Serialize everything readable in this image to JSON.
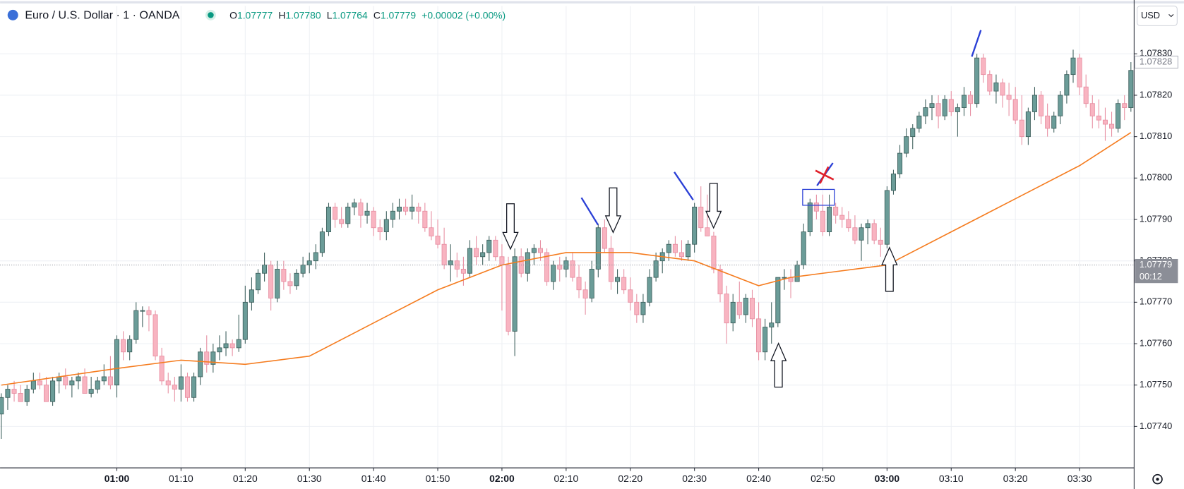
{
  "header": {
    "symbol": "Euro / U.S. Dollar · 1 · OANDA",
    "ohlc": [
      {
        "label": "O",
        "value": "1.07777"
      },
      {
        "label": "H",
        "value": "1.07780"
      },
      {
        "label": "L",
        "value": "1.07764"
      },
      {
        "label": "C",
        "value": "1.07779"
      }
    ],
    "change": "+0.00002 (+0.00%)",
    "currency": "USD",
    "countdown": "00:12"
  },
  "chart_data": {
    "type": "candlestick",
    "up_color": "#6b9c98",
    "down_color": "#f8b4c1",
    "grid": true,
    "x": [
      42,
      43,
      44,
      45,
      46,
      47,
      48,
      49,
      50,
      51,
      52,
      53,
      54,
      55,
      56,
      57,
      58,
      59,
      60,
      61,
      62,
      63,
      64,
      65,
      66,
      67,
      68,
      69,
      70,
      71,
      72,
      73,
      74,
      75,
      76,
      77,
      78,
      79,
      80,
      81,
      82,
      83,
      84,
      85,
      86,
      87,
      88,
      89,
      90,
      91,
      92,
      93,
      94,
      95,
      96,
      97,
      98,
      99,
      100,
      101,
      102,
      103,
      104,
      105,
      106,
      107,
      108,
      109,
      110,
      111,
      112,
      113,
      114,
      115,
      116,
      117,
      118,
      119,
      120,
      121,
      122,
      123,
      124,
      125,
      126,
      127,
      128,
      129,
      130,
      131,
      132,
      133,
      134,
      135,
      136,
      137,
      138,
      139,
      140,
      141,
      142,
      143,
      144,
      145,
      146,
      147,
      148,
      149,
      150,
      151,
      152,
      153,
      154,
      155,
      156,
      157,
      158,
      159,
      160,
      161,
      162,
      163,
      164,
      165,
      166,
      167,
      168,
      169,
      170,
      171,
      172,
      173,
      174,
      175,
      176,
      177,
      178,
      179,
      180,
      181,
      182,
      183,
      184,
      185,
      186,
      187,
      188,
      189,
      190,
      191,
      192,
      193,
      194,
      195,
      196,
      197,
      198,
      199,
      200,
      201,
      202,
      203,
      204,
      205,
      206,
      207,
      208,
      209,
      210,
      211,
      212,
      213,
      214,
      215,
      216,
      217,
      218
    ],
    "open": [
      1.07743,
      1.07747,
      1.07749,
      1.07748,
      1.07746,
      1.07749,
      1.07751,
      1.0775,
      1.07746,
      1.07751,
      1.07752,
      1.0775,
      1.07751,
      1.07752,
      1.07748,
      1.07749,
      1.07751,
      1.07752,
      1.0775,
      1.07761,
      1.07758,
      1.07761,
      1.07768,
      1.07768,
      1.07767,
      1.07757,
      1.07751,
      1.0775,
      1.07749,
      1.07752,
      1.07747,
      1.07752,
      1.07758,
      1.07755,
      1.07758,
      1.07759,
      1.0776,
      1.07759,
      1.07761,
      1.0777,
      1.07773,
      1.07777,
      1.07779,
      1.07771,
      1.07778,
      1.07775,
      1.07774,
      1.07777,
      1.07779,
      1.0778,
      1.07782,
      1.07787,
      1.07793,
      1.0779,
      1.07789,
      1.07793,
      1.07794,
      1.07791,
      1.07792,
      1.07788,
      1.07787,
      1.0779,
      1.07792,
      1.07793,
      1.07792,
      1.07793,
      1.07792,
      1.07788,
      1.07786,
      1.07784,
      1.07779,
      1.0778,
      1.07778,
      1.07777,
      1.07783,
      1.07781,
      1.07782,
      1.07785,
      1.07781,
      1.07779,
      1.07763,
      1.07781,
      1.07777,
      1.07782,
      1.07783,
      1.07782,
      1.07775,
      1.07779,
      1.07778,
      1.0778,
      1.07776,
      1.07773,
      1.07771,
      1.07778,
      1.07788,
      1.07783,
      1.07775,
      1.07776,
      1.07773,
      1.0777,
      1.07767,
      1.0777,
      1.07776,
      1.0778,
      1.07782,
      1.07784,
      1.07782,
      1.07781,
      1.07784,
      1.07793,
      1.07788,
      1.07786,
      1.07778,
      1.07772,
      1.07765,
      1.0777,
      1.07767,
      1.07771,
      1.07766,
      1.07758,
      1.07764,
      1.07765,
      1.07776,
      1.07776,
      1.07775,
      1.07779,
      1.07787,
      1.07794,
      1.07792,
      1.07787,
      1.07793,
      1.07791,
      1.0779,
      1.07788,
      1.07785,
      1.07788,
      1.07789,
      1.07785,
      1.07784,
      1.07797,
      1.07801,
      1.07806,
      1.0781,
      1.07812,
      1.07815,
      1.07817,
      1.07818,
      1.07815,
      1.07819,
      1.07816,
      1.07817,
      1.0782,
      1.07818,
      1.07829,
      1.07825,
      1.07821,
      1.07823,
      1.0782,
      1.07819,
      1.07814,
      1.0781,
      1.07816,
      1.0782,
      1.07815,
      1.07812,
      1.07815,
      1.0782,
      1.07825,
      1.07829,
      1.07822,
      1.07818,
      1.07815,
      1.07814,
      1.07813,
      1.07812,
      1.07818,
      1.07817
    ],
    "high": [
      1.07748,
      1.0775,
      1.07751,
      1.0775,
      1.0775,
      1.07753,
      1.07753,
      1.07752,
      1.07752,
      1.07753,
      1.07754,
      1.07752,
      1.07753,
      1.07754,
      1.07752,
      1.07752,
      1.07755,
      1.07757,
      1.07762,
      1.07763,
      1.07762,
      1.0777,
      1.07769,
      1.07769,
      1.07768,
      1.07759,
      1.07753,
      1.07752,
      1.07755,
      1.07753,
      1.07753,
      1.07759,
      1.07762,
      1.0776,
      1.07762,
      1.07763,
      1.07761,
      1.07767,
      1.07774,
      1.07776,
      1.07778,
      1.07782,
      1.0778,
      1.0778,
      1.0778,
      1.07777,
      1.07778,
      1.07781,
      1.07782,
      1.07784,
      1.07788,
      1.07794,
      1.07794,
      1.07793,
      1.07794,
      1.07795,
      1.07795,
      1.07794,
      1.07793,
      1.0779,
      1.07792,
      1.07794,
      1.07795,
      1.07795,
      1.07796,
      1.07794,
      1.07794,
      1.07792,
      1.0779,
      1.07788,
      1.07784,
      1.07782,
      1.07781,
      1.07785,
      1.07786,
      1.07784,
      1.07786,
      1.07786,
      1.07784,
      1.07781,
      1.07783,
      1.07783,
      1.07783,
      1.07784,
      1.07785,
      1.07783,
      1.0778,
      1.07781,
      1.07781,
      1.07782,
      1.07779,
      1.07775,
      1.0778,
      1.07789,
      1.0779,
      1.07786,
      1.07778,
      1.07778,
      1.07776,
      1.07772,
      1.07772,
      1.07778,
      1.07782,
      1.07783,
      1.07785,
      1.07786,
      1.07785,
      1.07785,
      1.07794,
      1.07798,
      1.07796,
      1.07787,
      1.07779,
      1.07774,
      1.07772,
      1.07775,
      1.07772,
      1.07773,
      1.0777,
      1.07766,
      1.0777,
      1.07776,
      1.07778,
      1.07778,
      1.0778,
      1.07789,
      1.07795,
      1.07796,
      1.07796,
      1.07796,
      1.07794,
      1.07793,
      1.07792,
      1.07791,
      1.07789,
      1.0779,
      1.0779,
      1.07788,
      1.07798,
      1.07802,
      1.07808,
      1.07812,
      1.07813,
      1.07816,
      1.07819,
      1.0782,
      1.0782,
      1.0782,
      1.07821,
      1.07818,
      1.07822,
      1.07821,
      1.0783,
      1.0783,
      1.07826,
      1.07825,
      1.07824,
      1.07823,
      1.07822,
      1.0782,
      1.07817,
      1.07822,
      1.07821,
      1.07818,
      1.07816,
      1.07821,
      1.07826,
      1.07831,
      1.0783,
      1.07825,
      1.0782,
      1.07819,
      1.07817,
      1.07816,
      1.07819,
      1.0782,
      1.07828
    ],
    "low": [
      1.07737,
      1.07744,
      1.07746,
      1.07746,
      1.07745,
      1.07748,
      1.07749,
      1.07746,
      1.07745,
      1.07748,
      1.07749,
      1.07747,
      1.07749,
      1.07749,
      1.07747,
      1.07748,
      1.0775,
      1.07749,
      1.07747,
      1.07756,
      1.07756,
      1.0776,
      1.07764,
      1.07763,
      1.07756,
      1.0775,
      1.07748,
      1.07746,
      1.07746,
      1.07746,
      1.07746,
      1.0775,
      1.07753,
      1.07753,
      1.07756,
      1.07757,
      1.07757,
      1.07758,
      1.0776,
      1.07768,
      1.07772,
      1.07775,
      1.07768,
      1.0777,
      1.07773,
      1.07772,
      1.07773,
      1.07776,
      1.07777,
      1.07778,
      1.07781,
      1.07786,
      1.07788,
      1.07788,
      1.07788,
      1.07791,
      1.07788,
      1.07789,
      1.07786,
      1.07785,
      1.07785,
      1.07788,
      1.0779,
      1.07791,
      1.0779,
      1.07789,
      1.07787,
      1.07785,
      1.07783,
      1.07778,
      1.07775,
      1.07776,
      1.07774,
      1.07776,
      1.07779,
      1.07779,
      1.0778,
      1.0778,
      1.07768,
      1.07762,
      1.07757,
      1.07776,
      1.07775,
      1.07779,
      1.0778,
      1.07774,
      1.07773,
      1.07775,
      1.07776,
      1.07775,
      1.07771,
      1.07767,
      1.0777,
      1.07776,
      1.07782,
      1.07773,
      1.07772,
      1.07772,
      1.07768,
      1.07765,
      1.07765,
      1.07769,
      1.07775,
      1.07777,
      1.0778,
      1.07781,
      1.0778,
      1.0778,
      1.07782,
      1.07787,
      1.07786,
      1.07777,
      1.0777,
      1.0776,
      1.07763,
      1.07766,
      1.07765,
      1.07764,
      1.07756,
      1.07756,
      1.0776,
      1.07764,
      1.07773,
      1.07771,
      1.07775,
      1.07778,
      1.07786,
      1.0779,
      1.07786,
      1.07786,
      1.07789,
      1.07788,
      1.07787,
      1.07784,
      1.0778,
      1.07784,
      1.07784,
      1.07781,
      1.07783,
      1.07796,
      1.078,
      1.07805,
      1.07807,
      1.07811,
      1.07813,
      1.07814,
      1.07812,
      1.07814,
      1.07815,
      1.0781,
      1.07815,
      1.07815,
      1.07817,
      1.07823,
      1.0782,
      1.07818,
      1.07817,
      1.07815,
      1.07813,
      1.07808,
      1.07808,
      1.07814,
      1.07813,
      1.0781,
      1.07811,
      1.07813,
      1.07818,
      1.07823,
      1.0782,
      1.07817,
      1.07812,
      1.07812,
      1.07809,
      1.0781,
      1.07811,
      1.07814,
      1.07816
    ],
    "close": [
      1.07747,
      1.07749,
      1.07748,
      1.07746,
      1.07749,
      1.07751,
      1.0775,
      1.07746,
      1.07751,
      1.07752,
      1.0775,
      1.07751,
      1.07752,
      1.07748,
      1.07749,
      1.07751,
      1.07752,
      1.0775,
      1.07761,
      1.07758,
      1.07761,
      1.07768,
      1.07768,
      1.07767,
      1.07757,
      1.07751,
      1.0775,
      1.07749,
      1.07752,
      1.07747,
      1.07752,
      1.07758,
      1.07755,
      1.07758,
      1.07759,
      1.0776,
      1.07759,
      1.07761,
      1.0777,
      1.07773,
      1.07777,
      1.07779,
      1.07771,
      1.07778,
      1.07775,
      1.07774,
      1.07777,
      1.07779,
      1.0778,
      1.07782,
      1.07787,
      1.07793,
      1.0779,
      1.07789,
      1.07793,
      1.07794,
      1.07791,
      1.07792,
      1.07788,
      1.07787,
      1.0779,
      1.07792,
      1.07793,
      1.07792,
      1.07793,
      1.07792,
      1.07788,
      1.07786,
      1.07784,
      1.07779,
      1.0778,
      1.07778,
      1.07777,
      1.07783,
      1.07781,
      1.07782,
      1.07785,
      1.07781,
      1.07779,
      1.07763,
      1.07781,
      1.07777,
      1.07782,
      1.07783,
      1.07782,
      1.07775,
      1.07779,
      1.07778,
      1.0778,
      1.07776,
      1.07773,
      1.07771,
      1.07778,
      1.07788,
      1.07783,
      1.07775,
      1.07776,
      1.07773,
      1.0777,
      1.07767,
      1.0777,
      1.07776,
      1.0778,
      1.07782,
      1.07784,
      1.07782,
      1.07781,
      1.07784,
      1.07793,
      1.07788,
      1.07786,
      1.07778,
      1.07772,
      1.07765,
      1.0777,
      1.07767,
      1.07771,
      1.07766,
      1.07758,
      1.07764,
      1.07765,
      1.07776,
      1.07776,
      1.07775,
      1.07779,
      1.07787,
      1.07794,
      1.07792,
      1.07787,
      1.07793,
      1.07791,
      1.0779,
      1.07788,
      1.07785,
      1.07788,
      1.07789,
      1.07785,
      1.07784,
      1.07797,
      1.07801,
      1.07806,
      1.0781,
      1.07812,
      1.07815,
      1.07817,
      1.07818,
      1.07815,
      1.07819,
      1.07816,
      1.07817,
      1.0782,
      1.07818,
      1.07829,
      1.07825,
      1.07821,
      1.07823,
      1.0782,
      1.07819,
      1.07814,
      1.0781,
      1.07816,
      1.0782,
      1.07815,
      1.07812,
      1.07815,
      1.0782,
      1.07825,
      1.07829,
      1.07822,
      1.07818,
      1.07815,
      1.07814,
      1.07813,
      1.07812,
      1.07818,
      1.07817,
      1.07826
    ],
    "moving_average": {
      "color": "#f57c1f",
      "x": [
        42,
        60,
        70,
        80,
        90,
        100,
        110,
        120,
        130,
        140,
        150,
        160,
        165,
        170,
        180,
        190,
        200,
        210,
        218
      ],
      "values": [
        1.0775,
        1.07754,
        1.07756,
        1.07755,
        1.07757,
        1.07765,
        1.07773,
        1.07779,
        1.07782,
        1.07782,
        1.0778,
        1.07774,
        1.07776,
        1.07777,
        1.07779,
        1.07787,
        1.07795,
        1.07803,
        1.07811
      ]
    },
    "price_line": 1.07779,
    "marker_price": 1.07828,
    "xlim": [
      41.8,
      218.5
    ],
    "xticks": [
      {
        "value": 60,
        "label": "01:00"
      },
      {
        "value": 70,
        "label": "01:10"
      },
      {
        "value": 80,
        "label": "01:20"
      },
      {
        "value": 90,
        "label": "01:30"
      },
      {
        "value": 100,
        "label": "01:40"
      },
      {
        "value": 110,
        "label": "01:50"
      },
      {
        "value": 120,
        "label": "02:00"
      },
      {
        "value": 130,
        "label": "02:10"
      },
      {
        "value": 140,
        "label": "02:20"
      },
      {
        "value": 150,
        "label": "02:30"
      },
      {
        "value": 160,
        "label": "02:40"
      },
      {
        "value": 170,
        "label": "02:50"
      },
      {
        "value": 180,
        "label": "03:00"
      },
      {
        "value": 190,
        "label": "03:10"
      },
      {
        "value": 200,
        "label": "03:20"
      },
      {
        "value": 210,
        "label": "03:30"
      }
    ],
    "ylim": [
      1.0773,
      1.07843
    ],
    "yticks": [
      {
        "value": 1.0774,
        "label": "1.07740"
      },
      {
        "value": 1.0775,
        "label": "1.07750"
      },
      {
        "value": 1.0776,
        "label": "1.07760"
      },
      {
        "value": 1.0777,
        "label": "1.07770"
      },
      {
        "value": 1.0778,
        "label": "1.07780"
      },
      {
        "value": 1.0779,
        "label": "1.07790"
      },
      {
        "value": 1.078,
        "label": "1.07800"
      },
      {
        "value": 1.0781,
        "label": "1.07810"
      },
      {
        "value": 1.0782,
        "label": "1.07820"
      },
      {
        "value": 1.0783,
        "label": "1.07830"
      }
    ]
  }
}
